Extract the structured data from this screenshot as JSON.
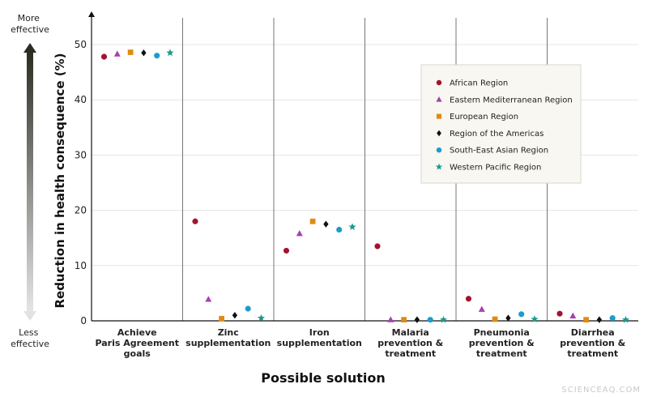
{
  "colors": {
    "African Region": "#a3132b",
    "Eastern Mediterranean Region": "#a640b0",
    "European Region": "#e08a12",
    "Region of the Americas": "#111111",
    "South-East Asian Region": "#1c9ccc",
    "Western Pacific Region": "#1a9a8a"
  },
  "markers": {
    "African Region": "circle",
    "Eastern Mediterranean Region": "triangle",
    "European Region": "square",
    "Region of the Americas": "diamond",
    "South-East Asian Region": "circle",
    "Western Pacific Region": "star"
  },
  "effectiveness": {
    "more": [
      "More",
      "effective"
    ],
    "less": [
      "Less",
      "effective"
    ]
  },
  "watermark": "SCIENCEAQ.COM",
  "chart_data": {
    "type": "scatter",
    "title": "",
    "xlabel": "Possible solution",
    "ylabel": "Reduction in health consequence (%)",
    "ylim": [
      0,
      55
    ],
    "yticks": [
      0,
      10,
      20,
      30,
      40,
      50
    ],
    "grid": true,
    "legend_position": "top-right",
    "categories": [
      [
        "Achieve",
        "Paris Agreement",
        "goals"
      ],
      [
        "Zinc",
        "supplementation"
      ],
      [
        "Iron",
        "supplementation"
      ],
      [
        "Malaria",
        "prevention &",
        "treatment"
      ],
      [
        "Pneumonia",
        "prevention &",
        "treatment"
      ],
      [
        "Diarrhea",
        "prevention &",
        "treatment"
      ]
    ],
    "series": [
      {
        "name": "African Region",
        "values": [
          47.8,
          18.0,
          12.7,
          13.5,
          4.0,
          1.3
        ]
      },
      {
        "name": "Eastern Mediterranean Region",
        "values": [
          48.3,
          3.9,
          15.8,
          0.2,
          2.1,
          0.9
        ]
      },
      {
        "name": "European Region",
        "values": [
          48.6,
          0.4,
          18.0,
          0.2,
          0.3,
          0.2
        ]
      },
      {
        "name": "Region of the Americas",
        "values": [
          48.5,
          1.0,
          17.5,
          0.2,
          0.5,
          0.2
        ]
      },
      {
        "name": "South-East Asian Region",
        "values": [
          48.0,
          2.2,
          16.5,
          0.2,
          1.2,
          0.5
        ]
      },
      {
        "name": "Western Pacific Region",
        "values": [
          48.5,
          0.5,
          17.0,
          0.2,
          0.3,
          0.2
        ]
      }
    ]
  }
}
